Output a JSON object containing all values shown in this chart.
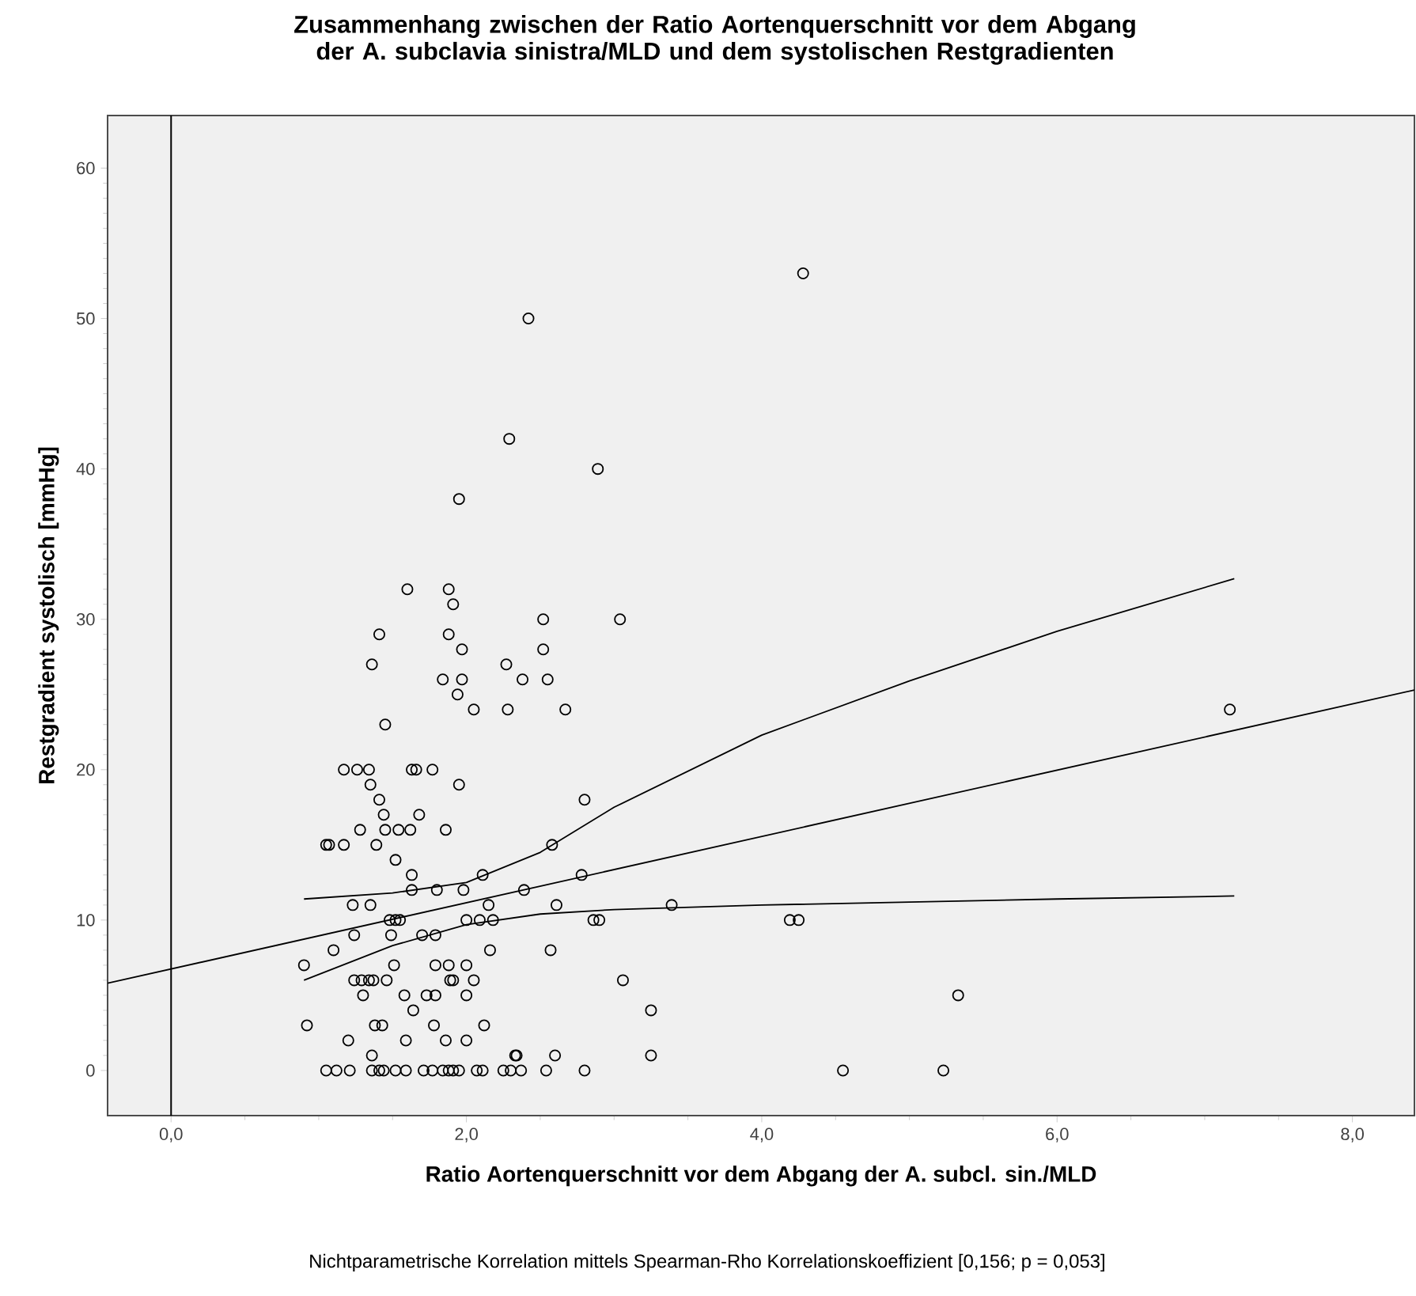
{
  "chart_data": {
    "type": "scatter",
    "title": "Zusammenhang zwischen der Ratio Aortenquerschnitt vor dem Abgang der A. subclavia sinistra/MLD und dem systolischen Restgradienten",
    "xlabel": "Ratio Aortenquerschnitt vor dem Abgang der A. subcl. sin./MLD",
    "ylabel": "Restgradient systolisch [mmHg]",
    "annotations": [
      "Nichtparametrische Korrelation mittels Spearman-Rho Korrelationskoeffizient [0,156; p = 0,053]"
    ],
    "xlim": [
      -0.43,
      8.42
    ],
    "ylim": [
      -3,
      63.5
    ],
    "xticks": [
      {
        "value": 0,
        "label": "0,0"
      },
      {
        "value": 2,
        "label": "2,0"
      },
      {
        "value": 4,
        "label": "4,0"
      },
      {
        "value": 6,
        "label": "6,0"
      },
      {
        "value": 8,
        "label": "8,0"
      }
    ],
    "yticks": [
      0,
      10,
      20,
      30,
      40,
      50,
      60
    ],
    "grid": false,
    "ref_lines": [
      {
        "axis": "x",
        "value": 0,
        "color": "#000000"
      }
    ],
    "series": [
      {
        "marker": "circle",
        "color": "#000000",
        "x": [
          4.28,
          2.42,
          2.29,
          2.89,
          1.95,
          1.6,
          1.88,
          1.91,
          2.52,
          3.04,
          1.41,
          1.88,
          1.97,
          2.52,
          1.36,
          2.27,
          1.84,
          1.97,
          2.38,
          2.55,
          1.94,
          2.05,
          2.28,
          2.67,
          7.17,
          1.45,
          1.17,
          1.26,
          1.34,
          1.63,
          1.66,
          1.77,
          1.35,
          1.95,
          1.41,
          2.8,
          1.44,
          1.68,
          1.28,
          1.45,
          1.54,
          1.62,
          1.86,
          1.05,
          1.07,
          1.17,
          1.39,
          2.58,
          1.52,
          1.63,
          2.11,
          2.78,
          1.63,
          1.8,
          1.98,
          2.39,
          1.23,
          1.35,
          2.15,
          2.61,
          3.39,
          1.48,
          1.52,
          1.55,
          2.0,
          2.09,
          2.18,
          2.86,
          2.9,
          4.19,
          4.25,
          1.24,
          1.49,
          1.7,
          1.79,
          1.1,
          2.16,
          2.57,
          0.9,
          1.51,
          1.79,
          1.88,
          2.0,
          1.24,
          1.29,
          1.34,
          1.37,
          1.46,
          1.89,
          1.91,
          2.05,
          3.06,
          1.3,
          1.58,
          1.73,
          1.79,
          2.0,
          5.33,
          1.64,
          3.25,
          0.92,
          1.38,
          1.43,
          1.78,
          2.12,
          1.2,
          1.59,
          1.86,
          2.0,
          1.36,
          2.33,
          2.34,
          2.6,
          3.25,
          1.05,
          1.12,
          1.21,
          1.36,
          1.41,
          1.44,
          1.52,
          1.59,
          1.71,
          1.77,
          1.84,
          1.88,
          1.91,
          1.95,
          2.07,
          2.11,
          2.25,
          2.3,
          2.37,
          2.54,
          2.8,
          4.55,
          5.23
        ],
        "values": [
          53,
          50,
          42,
          40,
          38,
          32,
          32,
          31,
          30,
          30,
          29,
          29,
          28,
          28,
          27,
          27,
          26,
          26,
          26,
          26,
          25,
          24,
          24,
          24,
          24,
          23,
          20,
          20,
          20,
          20,
          20,
          20,
          19,
          19,
          18,
          18,
          17,
          17,
          16,
          16,
          16,
          16,
          16,
          15,
          15,
          15,
          15,
          15,
          14,
          13,
          13,
          13,
          12,
          12,
          12,
          12,
          11,
          11,
          11,
          11,
          11,
          10,
          10,
          10,
          10,
          10,
          10,
          10,
          10,
          10,
          10,
          9,
          9,
          9,
          9,
          8,
          8,
          8,
          7,
          7,
          7,
          7,
          7,
          6,
          6,
          6,
          6,
          6,
          6,
          6,
          6,
          6,
          5,
          5,
          5,
          5,
          5,
          5,
          4,
          4,
          3,
          3,
          3,
          3,
          3,
          2,
          2,
          2,
          2,
          1,
          1,
          1,
          1,
          1,
          0,
          0,
          0,
          0,
          0,
          0,
          0,
          0,
          0,
          0,
          0,
          0,
          0,
          0,
          0,
          0,
          0,
          0,
          0,
          0,
          0,
          0,
          0
        ]
      },
      {
        "type": "line",
        "marker": "none",
        "color": "#000000",
        "x": [
          -0.43,
          8.42
        ],
        "values": [
          5.8,
          25.3
        ]
      },
      {
        "type": "line",
        "marker": "none",
        "color": "#000000",
        "x": [
          0.9,
          1.5,
          2.0,
          2.5,
          3.0,
          4.0,
          5.0,
          6.0,
          7.2
        ],
        "values": [
          11.4,
          11.8,
          12.5,
          14.5,
          17.5,
          22.3,
          25.9,
          29.2,
          32.7
        ]
      },
      {
        "type": "line",
        "marker": "none",
        "color": "#000000",
        "x": [
          0.9,
          1.5,
          2.0,
          2.5,
          3.0,
          4.0,
          5.0,
          6.0,
          7.2
        ],
        "values": [
          6.0,
          8.3,
          9.7,
          10.4,
          10.7,
          11.0,
          11.2,
          11.4,
          11.6
        ]
      }
    ]
  }
}
